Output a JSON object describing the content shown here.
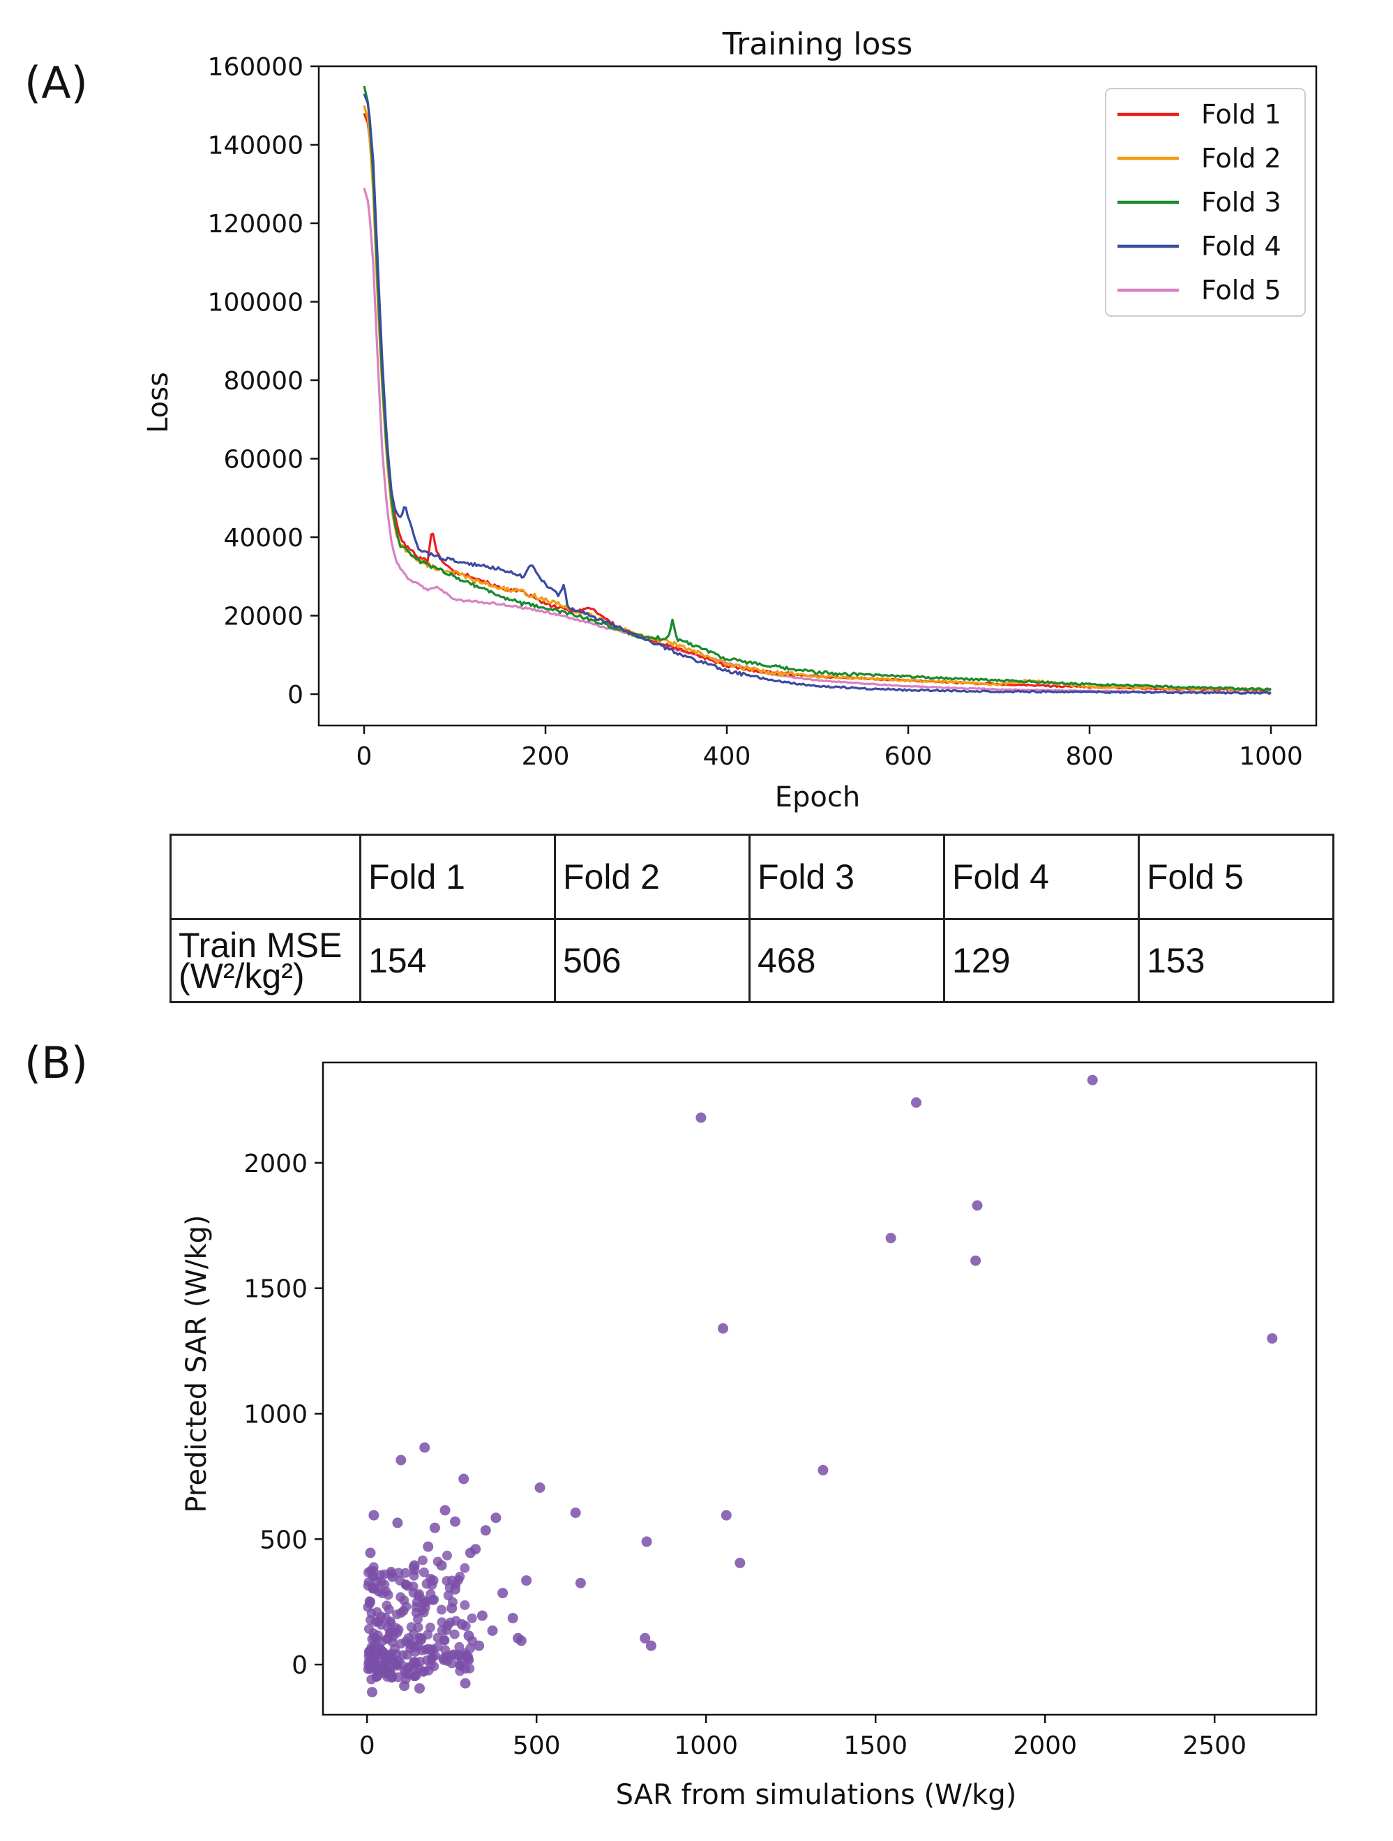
{
  "panels": {
    "a_label": "(A)",
    "b_label": "(B)"
  },
  "chart_data": [
    {
      "type": "line",
      "title": "Training loss",
      "xlabel": "Epoch",
      "ylabel": "Loss",
      "xlim": [
        -50,
        1050
      ],
      "ylim": [
        -8000,
        160000
      ],
      "xticks": [
        0,
        200,
        400,
        600,
        800,
        1000
      ],
      "yticks": [
        0,
        20000,
        40000,
        60000,
        80000,
        100000,
        120000,
        140000,
        160000
      ],
      "legend_position": "top-right",
      "series": [
        {
          "name": "Fold 1",
          "color": "#e8211d",
          "noise": 800,
          "x": [
            0,
            5,
            10,
            15,
            20,
            25,
            30,
            35,
            40,
            45,
            50,
            60,
            70,
            75,
            80,
            90,
            100,
            120,
            150,
            175,
            200,
            230,
            250,
            280,
            300,
            340,
            380,
            400,
            450,
            500,
            550,
            600,
            700,
            800,
            900,
            1000
          ],
          "y": [
            148000,
            145000,
            130000,
            105000,
            82000,
            64000,
            52000,
            44000,
            40000,
            38000,
            37000,
            35000,
            34000,
            42500,
            36000,
            33000,
            31000,
            30000,
            27000,
            26000,
            23000,
            21000,
            22000,
            17000,
            15000,
            12000,
            9000,
            7000,
            5500,
            4500,
            4000,
            3500,
            2500,
            1800,
            1300,
            1000
          ]
        },
        {
          "name": "Fold 2",
          "color": "#f39c12",
          "noise": 1200,
          "x": [
            0,
            5,
            10,
            15,
            20,
            25,
            30,
            35,
            40,
            50,
            60,
            80,
            100,
            120,
            150,
            175,
            200,
            250,
            300,
            340,
            400,
            450,
            500,
            600,
            700,
            735,
            800,
            900,
            1000
          ],
          "y": [
            150000,
            146000,
            128000,
            100000,
            78000,
            60000,
            48000,
            41000,
            38000,
            36000,
            34000,
            32000,
            31000,
            29000,
            27000,
            26000,
            24000,
            20000,
            15000,
            13000,
            7500,
            5500,
            4500,
            3500,
            2500,
            3500,
            1800,
            1500,
            1200
          ]
        },
        {
          "name": "Fold 3",
          "color": "#1a8a2e",
          "noise": 1000,
          "x": [
            0,
            5,
            10,
            15,
            20,
            25,
            30,
            35,
            40,
            50,
            60,
            80,
            100,
            120,
            150,
            175,
            200,
            250,
            300,
            335,
            340,
            345,
            370,
            400,
            450,
            500,
            600,
            700,
            800,
            900,
            1000
          ],
          "y": [
            155000,
            150000,
            132000,
            104000,
            80000,
            62000,
            50000,
            42000,
            38000,
            36000,
            34000,
            32000,
            30000,
            28000,
            25000,
            23000,
            22000,
            19000,
            15000,
            14000,
            19000,
            14000,
            12000,
            9000,
            7000,
            5500,
            4500,
            3500,
            2500,
            1800,
            1200
          ]
        },
        {
          "name": "Fold 4",
          "color": "#3a4ba0",
          "noise": 900,
          "x": [
            0,
            5,
            10,
            15,
            20,
            25,
            30,
            35,
            40,
            45,
            50,
            55,
            60,
            80,
            100,
            120,
            150,
            175,
            185,
            190,
            200,
            215,
            220,
            225,
            250,
            300,
            350,
            400,
            450,
            500,
            600,
            700,
            800,
            900,
            1000
          ],
          "y": [
            153000,
            150000,
            136000,
            110000,
            85000,
            65000,
            52000,
            46000,
            45000,
            48000,
            44000,
            40000,
            37000,
            35000,
            34000,
            33000,
            32000,
            30000,
            33000,
            31000,
            28000,
            25000,
            28000,
            22000,
            20000,
            15000,
            10000,
            6000,
            3500,
            2000,
            1000,
            700,
            500,
            400,
            300
          ]
        },
        {
          "name": "Fold 5",
          "color": "#d881c4",
          "noise": 500,
          "x": [
            0,
            5,
            10,
            15,
            20,
            25,
            30,
            35,
            40,
            50,
            60,
            70,
            80,
            100,
            150,
            200,
            250,
            300,
            350,
            400,
            450,
            500,
            600,
            700,
            800,
            900,
            1000
          ],
          "y": [
            129000,
            125000,
            110000,
            85000,
            62000,
            48000,
            39000,
            34000,
            32000,
            29000,
            28000,
            26500,
            27500,
            24000,
            23000,
            21000,
            18000,
            15000,
            11000,
            8000,
            5000,
            3500,
            2000,
            1200,
            800,
            500,
            300
          ]
        }
      ]
    },
    {
      "type": "scatter",
      "xlabel": "SAR from simulations (W/kg)",
      "ylabel": "Predicted SAR (W/kg)",
      "xlim": [
        -130,
        2800
      ],
      "ylim": [
        -200,
        2400
      ],
      "xticks": [
        0,
        500,
        1000,
        1500,
        2000,
        2500
      ],
      "yticks": [
        0,
        500,
        1000,
        1500,
        2000
      ],
      "color": "#7a4fa8",
      "cluster": {
        "n": 260,
        "note": "dense cluster of points near the origin (x about 0-400, y about -100 to 600)"
      },
      "points": [
        [
          985,
          2180
        ],
        [
          1620,
          2240
        ],
        [
          2140,
          2330
        ],
        [
          1800,
          1830
        ],
        [
          1545,
          1700
        ],
        [
          1795,
          1610
        ],
        [
          1050,
          1340
        ],
        [
          2670,
          1300
        ],
        [
          1345,
          775
        ],
        [
          510,
          705
        ],
        [
          1060,
          595
        ],
        [
          1100,
          405
        ],
        [
          615,
          605
        ],
        [
          630,
          325
        ],
        [
          825,
          490
        ],
        [
          820,
          105
        ],
        [
          838,
          75
        ],
        [
          470,
          335
        ],
        [
          445,
          105
        ],
        [
          455,
          95
        ],
        [
          400,
          285
        ],
        [
          430,
          185
        ],
        [
          380,
          585
        ],
        [
          350,
          535
        ],
        [
          340,
          195
        ],
        [
          320,
          460
        ],
        [
          305,
          445
        ],
        [
          285,
          740
        ],
        [
          260,
          570
        ],
        [
          230,
          615
        ],
        [
          200,
          545
        ],
        [
          170,
          865
        ],
        [
          100,
          815
        ],
        [
          90,
          565
        ],
        [
          20,
          595
        ],
        [
          10,
          445
        ],
        [
          140,
          395
        ],
        [
          75,
          350
        ],
        [
          220,
          395
        ],
        [
          180,
          470
        ],
        [
          260,
          300
        ],
        [
          300,
          115
        ],
        [
          290,
          -75
        ],
        [
          155,
          -95
        ],
        [
          110,
          -85
        ],
        [
          15,
          -110
        ],
        [
          30,
          -45
        ],
        [
          60,
          -25
        ],
        [
          195,
          335
        ],
        [
          250,
          225
        ],
        [
          280,
          160
        ],
        [
          330,
          75
        ],
        [
          370,
          135
        ]
      ]
    }
  ],
  "table": {
    "headers": [
      "",
      "Fold 1",
      "Fold 2",
      "Fold 3",
      "Fold 4",
      "Fold 5"
    ],
    "row_label_line1": "Train MSE",
    "row_label_line2": "(W²/kg²)",
    "values": [
      "154",
      "506",
      "468",
      "129",
      "153"
    ]
  }
}
